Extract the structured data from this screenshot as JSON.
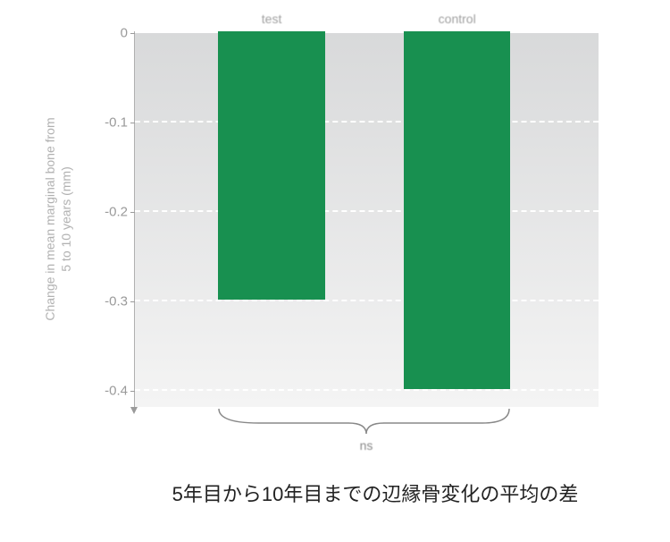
{
  "chart": {
    "type": "bar",
    "yaxis_title_line1": "Change in mean marginal bone from",
    "yaxis_title_line2": "5 to 10 years (mm)",
    "ylim": [
      -0.42,
      0
    ],
    "yticks": [
      {
        "value": 0,
        "label": "0",
        "pos_pct": 0
      },
      {
        "value": -0.1,
        "label": "-0.1",
        "pos_pct": 23.8
      },
      {
        "value": -0.2,
        "label": "-0.2",
        "pos_pct": 47.6
      },
      {
        "value": -0.3,
        "label": "-0.3",
        "pos_pct": 71.4
      },
      {
        "value": -0.4,
        "label": "-0.4",
        "pos_pct": 95.2
      }
    ],
    "bars": [
      {
        "label": "test",
        "value": -0.3,
        "height_pct": 71.4,
        "left_pct": 18,
        "width_pct": 23,
        "color": "#189050"
      },
      {
        "label": "control",
        "value": -0.4,
        "height_pct": 95.2,
        "left_pct": 58,
        "width_pct": 23,
        "color": "#189050"
      }
    ],
    "ns_label": "ns",
    "background_gradient_top": "#d8d9da",
    "background_gradient_bottom": "#f4f4f4",
    "grid_color": "#ffffff",
    "tick_label_color": "#9a9a9a",
    "axis_title_color": "#b0b0b0"
  },
  "caption": "5年目から10年目までの辺縁骨変化の平均の差"
}
